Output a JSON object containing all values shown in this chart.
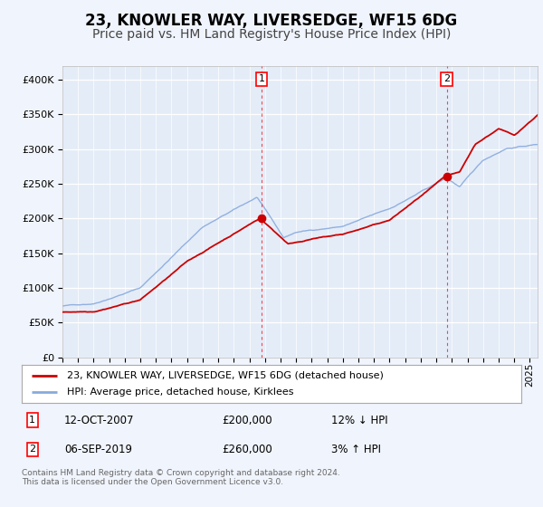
{
  "title": "23, KNOWLER WAY, LIVERSEDGE, WF15 6DG",
  "subtitle": "Price paid vs. HM Land Registry's House Price Index (HPI)",
  "title_fontsize": 12,
  "subtitle_fontsize": 10,
  "bg_color": "#f0f4fc",
  "plot_bg_color": "#e4ecf8",
  "grid_color": "#ffffff",
  "line1_color": "#cc0000",
  "line2_color": "#88aadd",
  "ylim": [
    0,
    420000
  ],
  "yticks": [
    0,
    50000,
    100000,
    150000,
    200000,
    250000,
    300000,
    350000,
    400000
  ],
  "ytick_labels": [
    "£0",
    "£50K",
    "£100K",
    "£150K",
    "£200K",
    "£250K",
    "£300K",
    "£350K",
    "£400K"
  ],
  "sale1_date": 2007.78,
  "sale1_price": 200000,
  "sale2_date": 2019.67,
  "sale2_price": 260000,
  "legend_line1": "23, KNOWLER WAY, LIVERSEDGE, WF15 6DG (detached house)",
  "legend_line2": "HPI: Average price, detached house, Kirklees",
  "annotation1": [
    "1",
    "12-OCT-2007",
    "£200,000",
    "12% ↓ HPI"
  ],
  "annotation2": [
    "2",
    "06-SEP-2019",
    "£260,000",
    "3% ↑ HPI"
  ],
  "footer": "Contains HM Land Registry data © Crown copyright and database right 2024.\nThis data is licensed under the Open Government Licence v3.0.",
  "xstart": 1995,
  "xend": 2025.5
}
